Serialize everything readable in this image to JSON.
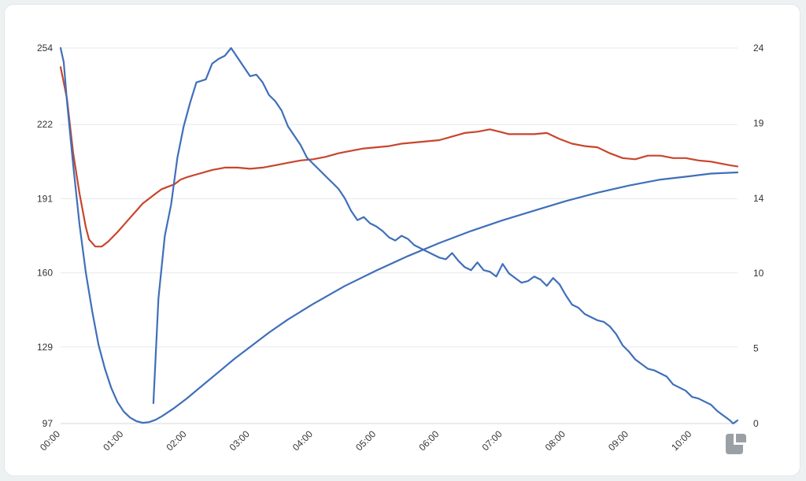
{
  "chart_data": {
    "type": "line",
    "y_left": {
      "ticks": [
        "97",
        "129",
        "160",
        "191",
        "222",
        "254"
      ],
      "ylim": [
        97,
        254
      ]
    },
    "y_right": {
      "ticks": [
        "0",
        "5",
        "10",
        "14",
        "19",
        "24"
      ],
      "ylim": [
        0,
        24
      ]
    },
    "x": {
      "ticks": [
        "00:00",
        "01:00",
        "02:00",
        "03:00",
        "04:00",
        "05:00",
        "06:00",
        "07:00",
        "08:00",
        "09:00",
        "10:00"
      ],
      "xlim_hours": [
        0,
        10.72
      ]
    },
    "grid": true,
    "series": [
      {
        "axis": "left",
        "color": "#c9452c",
        "points": [
          [
            0.0,
            246
          ],
          [
            0.1,
            233
          ],
          [
            0.2,
            210
          ],
          [
            0.3,
            193
          ],
          [
            0.4,
            179
          ],
          [
            0.45,
            174
          ],
          [
            0.55,
            171
          ],
          [
            0.65,
            171
          ],
          [
            0.75,
            173
          ],
          [
            0.9,
            177
          ],
          [
            1.0,
            180
          ],
          [
            1.1,
            183
          ],
          [
            1.2,
            186
          ],
          [
            1.3,
            189
          ],
          [
            1.4,
            191
          ],
          [
            1.5,
            193
          ],
          [
            1.6,
            195
          ],
          [
            1.7,
            196
          ],
          [
            1.8,
            197
          ],
          [
            1.9,
            199
          ],
          [
            2.0,
            200
          ],
          [
            2.2,
            201.5
          ],
          [
            2.4,
            203
          ],
          [
            2.6,
            204
          ],
          [
            2.8,
            204
          ],
          [
            3.0,
            203.5
          ],
          [
            3.2,
            204
          ],
          [
            3.4,
            205
          ],
          [
            3.6,
            206
          ],
          [
            3.8,
            207
          ],
          [
            4.0,
            207.5
          ],
          [
            4.2,
            208.5
          ],
          [
            4.4,
            210
          ],
          [
            4.6,
            211
          ],
          [
            4.8,
            212
          ],
          [
            5.0,
            212.5
          ],
          [
            5.2,
            213
          ],
          [
            5.4,
            214
          ],
          [
            5.6,
            214.5
          ],
          [
            5.8,
            215
          ],
          [
            6.0,
            215.5
          ],
          [
            6.2,
            217
          ],
          [
            6.4,
            218.5
          ],
          [
            6.6,
            219
          ],
          [
            6.8,
            220
          ],
          [
            6.95,
            219
          ],
          [
            7.1,
            218
          ],
          [
            7.3,
            218
          ],
          [
            7.5,
            218
          ],
          [
            7.7,
            218.5
          ],
          [
            7.9,
            216
          ],
          [
            8.1,
            214
          ],
          [
            8.3,
            213
          ],
          [
            8.5,
            212.5
          ],
          [
            8.7,
            210
          ],
          [
            8.9,
            208
          ],
          [
            9.1,
            207.5
          ],
          [
            9.3,
            209
          ],
          [
            9.5,
            209
          ],
          [
            9.7,
            208
          ],
          [
            9.9,
            208
          ],
          [
            10.1,
            207
          ],
          [
            10.3,
            206.5
          ],
          [
            10.5,
            205.5
          ],
          [
            10.6,
            205
          ],
          [
            10.72,
            204.5
          ]
        ]
      },
      {
        "axis": "left",
        "color": "#3f6fba",
        "points": [
          [
            0.0,
            254
          ],
          [
            0.05,
            248
          ],
          [
            0.1,
            232
          ],
          [
            0.2,
            205
          ],
          [
            0.3,
            180
          ],
          [
            0.4,
            160
          ],
          [
            0.5,
            144
          ],
          [
            0.6,
            130
          ],
          [
            0.7,
            120
          ],
          [
            0.8,
            112
          ],
          [
            0.9,
            106
          ],
          [
            1.0,
            102
          ],
          [
            1.1,
            99.5
          ],
          [
            1.2,
            98
          ],
          [
            1.3,
            97.3
          ],
          [
            1.4,
            97.6
          ],
          [
            1.5,
            98.5
          ],
          [
            1.6,
            100
          ],
          [
            1.8,
            103.5
          ],
          [
            2.0,
            107.5
          ],
          [
            2.25,
            113
          ],
          [
            2.5,
            118.5
          ],
          [
            2.75,
            124
          ],
          [
            3.0,
            129
          ],
          [
            3.3,
            135
          ],
          [
            3.6,
            140.5
          ],
          [
            4.0,
            147
          ],
          [
            4.5,
            154.5
          ],
          [
            5.0,
            161
          ],
          [
            5.5,
            167
          ],
          [
            6.0,
            172.5
          ],
          [
            6.5,
            177.5
          ],
          [
            7.0,
            182
          ],
          [
            7.5,
            186
          ],
          [
            8.0,
            190
          ],
          [
            8.5,
            193.5
          ],
          [
            9.0,
            196.5
          ],
          [
            9.5,
            199
          ],
          [
            10.0,
            200.5
          ],
          [
            10.3,
            201.5
          ],
          [
            10.72,
            202
          ]
        ]
      },
      {
        "axis": "right",
        "color": "#3f6fba",
        "points": [
          [
            1.47,
            1.3
          ],
          [
            1.55,
            8
          ],
          [
            1.65,
            12
          ],
          [
            1.75,
            14
          ],
          [
            1.85,
            17
          ],
          [
            1.95,
            19
          ],
          [
            2.05,
            20.5
          ],
          [
            2.15,
            21.8
          ],
          [
            2.3,
            22
          ],
          [
            2.4,
            23
          ],
          [
            2.5,
            23.3
          ],
          [
            2.6,
            23.5
          ],
          [
            2.7,
            24
          ],
          [
            2.8,
            23.4
          ],
          [
            2.9,
            22.8
          ],
          [
            3.0,
            22.2
          ],
          [
            3.1,
            22.3
          ],
          [
            3.2,
            21.8
          ],
          [
            3.3,
            21
          ],
          [
            3.4,
            20.6
          ],
          [
            3.5,
            20
          ],
          [
            3.6,
            19
          ],
          [
            3.7,
            18.4
          ],
          [
            3.8,
            17.8
          ],
          [
            3.9,
            17
          ],
          [
            4.0,
            16.6
          ],
          [
            4.1,
            16.2
          ],
          [
            4.2,
            15.8
          ],
          [
            4.3,
            15.4
          ],
          [
            4.4,
            15
          ],
          [
            4.5,
            14.4
          ],
          [
            4.6,
            13.6
          ],
          [
            4.7,
            13
          ],
          [
            4.8,
            13.2
          ],
          [
            4.9,
            12.8
          ],
          [
            5.0,
            12.6
          ],
          [
            5.1,
            12.3
          ],
          [
            5.2,
            11.9
          ],
          [
            5.3,
            11.7
          ],
          [
            5.4,
            12
          ],
          [
            5.5,
            11.8
          ],
          [
            5.6,
            11.4
          ],
          [
            5.7,
            11.2
          ],
          [
            5.8,
            11
          ],
          [
            5.9,
            10.8
          ],
          [
            6.0,
            10.6
          ],
          [
            6.1,
            10.5
          ],
          [
            6.2,
            10.9
          ],
          [
            6.3,
            10.4
          ],
          [
            6.4,
            10
          ],
          [
            6.5,
            9.8
          ],
          [
            6.6,
            10.3
          ],
          [
            6.7,
            9.8
          ],
          [
            6.8,
            9.7
          ],
          [
            6.9,
            9.4
          ],
          [
            7.0,
            10.2
          ],
          [
            7.1,
            9.6
          ],
          [
            7.2,
            9.3
          ],
          [
            7.3,
            9
          ],
          [
            7.4,
            9.1
          ],
          [
            7.5,
            9.4
          ],
          [
            7.6,
            9.2
          ],
          [
            7.7,
            8.8
          ],
          [
            7.8,
            9.3
          ],
          [
            7.9,
            8.9
          ],
          [
            8.0,
            8.2
          ],
          [
            8.1,
            7.6
          ],
          [
            8.2,
            7.4
          ],
          [
            8.3,
            7
          ],
          [
            8.4,
            6.8
          ],
          [
            8.5,
            6.6
          ],
          [
            8.6,
            6.5
          ],
          [
            8.7,
            6.2
          ],
          [
            8.8,
            5.7
          ],
          [
            8.9,
            5
          ],
          [
            9.0,
            4.6
          ],
          [
            9.1,
            4.1
          ],
          [
            9.2,
            3.8
          ],
          [
            9.3,
            3.5
          ],
          [
            9.4,
            3.4
          ],
          [
            9.5,
            3.2
          ],
          [
            9.6,
            3
          ],
          [
            9.7,
            2.5
          ],
          [
            9.8,
            2.3
          ],
          [
            9.9,
            2.1
          ],
          [
            10.0,
            1.7
          ],
          [
            10.1,
            1.6
          ],
          [
            10.2,
            1.4
          ],
          [
            10.3,
            1.2
          ],
          [
            10.4,
            0.8
          ],
          [
            10.5,
            0.5
          ],
          [
            10.6,
            0.2
          ],
          [
            10.65,
            0
          ],
          [
            10.72,
            0.2
          ]
        ]
      }
    ]
  }
}
